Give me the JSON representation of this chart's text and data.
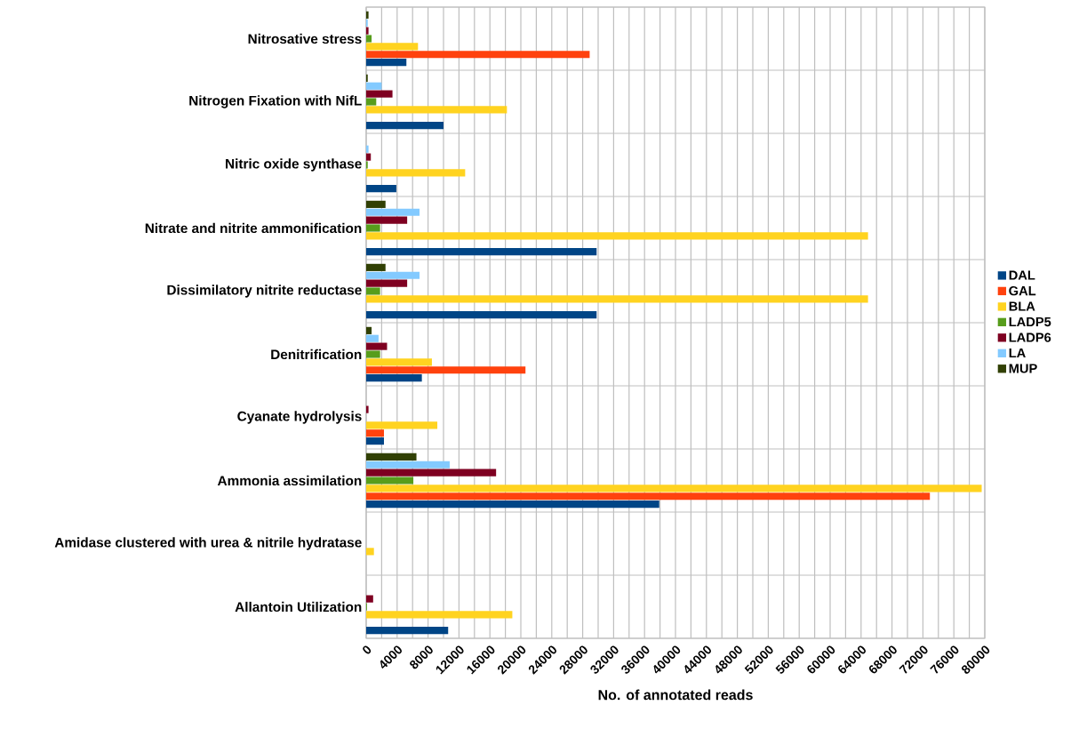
{
  "chart_data": {
    "type": "bar",
    "orientation": "horizontal",
    "xlabel": "No. of annotated reads",
    "categories": [
      "Nitrosative stress",
      "Nitrogen Fixation with NifL",
      "Nitric oxide synthase",
      "Nitrate and nitrite ammonification",
      "Dissimilatory nitrite reductase",
      "Denitrification",
      "Cyanate hydrolysis",
      "Ammonia assimilation",
      "Amidase clustered with urea & nitrile hydratase",
      "Allantoin Utilization"
    ],
    "series": [
      {
        "name": "DAL",
        "color": "#004586",
        "values": [
          5200,
          10000,
          3900,
          29800,
          29800,
          7200,
          2300,
          37900,
          null,
          10600
        ]
      },
      {
        "name": "GAL",
        "color": "#ff420e",
        "values": [
          28900,
          null,
          null,
          null,
          null,
          20600,
          2300,
          72900,
          null,
          null
        ]
      },
      {
        "name": "BLA",
        "color": "#ffd320",
        "values": [
          6700,
          18200,
          12800,
          64900,
          64900,
          8500,
          9200,
          79600,
          1000,
          18900
        ]
      },
      {
        "name": "LADP5",
        "color": "#579d1c",
        "values": [
          700,
          1300,
          200,
          1800,
          1800,
          1800,
          null,
          6100,
          null,
          100
        ]
      },
      {
        "name": "LADP6",
        "color": "#7e0021",
        "values": [
          300,
          3400,
          600,
          5300,
          5300,
          2700,
          300,
          16800,
          null,
          900
        ]
      },
      {
        "name": "LA",
        "color": "#83caff",
        "values": [
          200,
          2000,
          300,
          6900,
          6900,
          1600,
          null,
          10800,
          null,
          null
        ]
      },
      {
        "name": "MUP",
        "color": "#314004",
        "values": [
          300,
          200,
          null,
          2500,
          2500,
          700,
          null,
          6500,
          null,
          null
        ]
      }
    ],
    "xlim": [
      0,
      80000
    ],
    "xticks": [
      0,
      {
        "value": 2000,
        "label": null
      },
      4000,
      {
        "value": 6000,
        "label": null
      },
      8000,
      {
        "value": 10000,
        "label": null
      },
      12000,
      {
        "value": 14000,
        "label": null
      },
      16000,
      {
        "value": 18000,
        "label": null
      },
      20000,
      {
        "value": 22000,
        "label": null
      },
      24000,
      {
        "value": 26000,
        "label": null
      },
      28000,
      {
        "value": 30000,
        "label": null
      },
      32000,
      {
        "value": 34000,
        "label": null
      },
      36000,
      {
        "value": 38000,
        "label": null
      },
      40000,
      {
        "value": 42000,
        "label": null
      },
      44000,
      {
        "value": 46000,
        "label": null
      },
      48000,
      {
        "value": 50000,
        "label": null
      },
      52000,
      {
        "value": 54000,
        "label": null
      },
      56000,
      {
        "value": 58000,
        "label": null
      },
      60000,
      {
        "value": 62000,
        "label": null
      },
      64000,
      {
        "value": 66000,
        "label": null
      },
      68000,
      {
        "value": 70000,
        "label": null
      },
      72000,
      {
        "value": 74000,
        "label": null
      },
      76000,
      {
        "value": 78000,
        "label": null
      },
      80000
    ],
    "grid": true,
    "legend": "right"
  }
}
